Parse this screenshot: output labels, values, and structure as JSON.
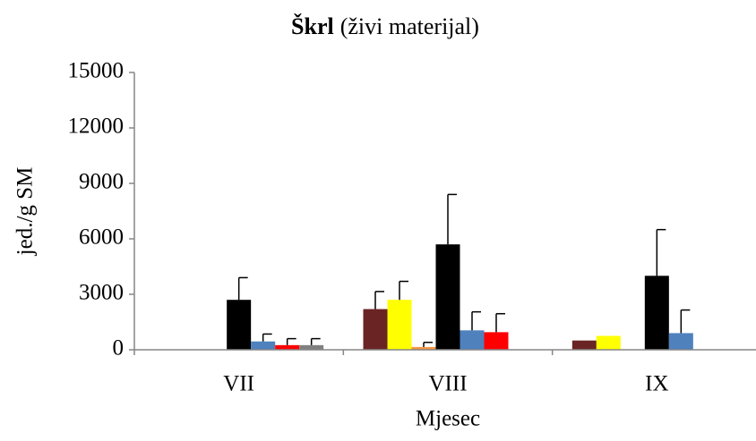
{
  "chart_data": {
    "type": "bar",
    "title_bold": "Škrl",
    "title": "(živi materijal)",
    "x_label": "Mjesec",
    "y_label": "jed./g SM",
    "categories": [
      "VII",
      "VIII",
      "IX"
    ],
    "ylim": [
      0,
      15000
    ],
    "yticks": [
      0,
      3000,
      6000,
      9000,
      12000,
      15000
    ],
    "grid": false,
    "series": [
      {
        "color": "#6b2424",
        "values": [
          null,
          2200,
          500
        ],
        "errors": [
          null,
          950,
          null
        ]
      },
      {
        "color": "#ffff00",
        "values": [
          null,
          2700,
          750
        ],
        "errors": [
          null,
          1000,
          null
        ]
      },
      {
        "color": "#f79646",
        "values": [
          null,
          150,
          null
        ],
        "errors": [
          null,
          250,
          null
        ]
      },
      {
        "color": "#000000",
        "values": [
          2700,
          5700,
          4000
        ],
        "errors": [
          1200,
          2700,
          2500
        ]
      },
      {
        "color": "#4f81bd",
        "values": [
          450,
          1050,
          900
        ],
        "errors": [
          400,
          1000,
          1250
        ]
      },
      {
        "color": "#ff0000",
        "values": [
          250,
          950,
          null
        ],
        "errors": [
          350,
          1000,
          null
        ]
      },
      {
        "color": "#808080",
        "values": [
          250,
          null,
          null
        ],
        "errors": [
          350,
          null,
          null
        ]
      }
    ]
  }
}
